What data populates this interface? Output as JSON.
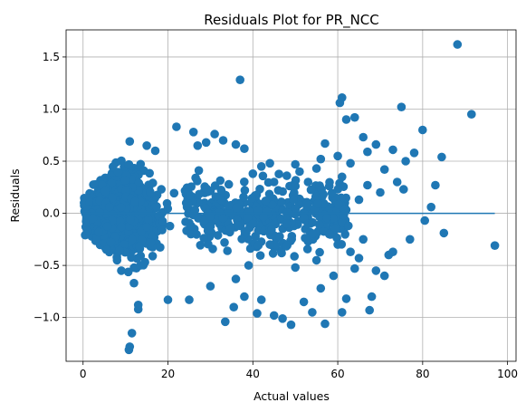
{
  "chart_data": {
    "type": "scatter",
    "title": "Residuals Plot for PR_NCC",
    "xlabel": "Actual values",
    "ylabel": "Residuals",
    "xlim": [
      -4,
      102
    ],
    "ylim": [
      -1.42,
      1.76
    ],
    "xticks": [
      0,
      20,
      40,
      60,
      80,
      100
    ],
    "yticks": [
      -1.0,
      -0.5,
      0.0,
      0.5,
      1.0,
      1.5
    ],
    "ytick_labels": [
      "−1.0",
      "−0.5",
      "0.0",
      "0.5",
      "1.0",
      "1.5"
    ],
    "grid": true,
    "legend": "none",
    "colors": {
      "point": "#1f77b4",
      "line": "#1f77b4"
    },
    "zero_line": {
      "x": [
        0,
        97
      ],
      "y": [
        0,
        0
      ]
    },
    "series": [
      {
        "points": [
          [
            88.2,
            1.62
          ],
          [
            37.0,
            1.28
          ],
          [
            61.0,
            1.11
          ],
          [
            60.5,
            1.06
          ],
          [
            75.0,
            1.02
          ],
          [
            62.0,
            0.9
          ],
          [
            64.0,
            0.92
          ],
          [
            91.5,
            0.95
          ],
          [
            80.0,
            0.8
          ],
          [
            66.0,
            0.73
          ],
          [
            69.0,
            0.66
          ],
          [
            73.0,
            0.61
          ],
          [
            78.0,
            0.58
          ],
          [
            57.0,
            0.67
          ],
          [
            76.0,
            0.5
          ],
          [
            84.5,
            0.54
          ],
          [
            50.0,
            0.47
          ],
          [
            55.0,
            0.43
          ],
          [
            44.0,
            0.48
          ],
          [
            48.0,
            0.36
          ],
          [
            67.0,
            0.27
          ],
          [
            70.0,
            0.2
          ],
          [
            74.0,
            0.3
          ],
          [
            83.0,
            0.27
          ],
          [
            75.5,
            0.23
          ],
          [
            61.0,
            0.35
          ],
          [
            63.0,
            0.48
          ],
          [
            53.0,
            0.3
          ],
          [
            58.0,
            0.26
          ],
          [
            46.0,
            0.22
          ],
          [
            71.0,
            0.42
          ],
          [
            80.5,
            -0.07
          ],
          [
            82.0,
            0.06
          ],
          [
            85.0,
            -0.19
          ],
          [
            97.0,
            -0.31
          ],
          [
            77.0,
            -0.25
          ],
          [
            72.0,
            -0.4
          ],
          [
            69.0,
            -0.55
          ],
          [
            68.0,
            -0.8
          ],
          [
            67.5,
            -0.93
          ],
          [
            73.0,
            -0.37
          ],
          [
            71.0,
            -0.6
          ],
          [
            63.0,
            -0.37
          ],
          [
            64.0,
            -0.53
          ],
          [
            62.0,
            -0.82
          ],
          [
            61.0,
            -0.95
          ],
          [
            57.0,
            -1.06
          ],
          [
            54.0,
            -0.95
          ],
          [
            49.0,
            -1.07
          ],
          [
            45.0,
            -0.98
          ],
          [
            42.0,
            -0.83
          ],
          [
            38.0,
            -0.8
          ],
          [
            35.5,
            -0.9
          ],
          [
            33.5,
            -1.04
          ],
          [
            41.0,
            -0.96
          ],
          [
            47.0,
            -1.01
          ],
          [
            52.0,
            -0.85
          ],
          [
            56.0,
            -0.72
          ],
          [
            59.0,
            -0.6
          ],
          [
            65.0,
            -0.43
          ],
          [
            66.0,
            -0.25
          ],
          [
            60.0,
            -0.3
          ],
          [
            55.0,
            -0.45
          ],
          [
            50.0,
            -0.52
          ],
          [
            44.0,
            -0.3
          ],
          [
            39.0,
            -0.5
          ],
          [
            36.0,
            -0.63
          ],
          [
            34.0,
            -0.36
          ],
          [
            30.0,
            -0.7
          ],
          [
            25.0,
            -0.83
          ],
          [
            20.0,
            -0.83
          ],
          [
            13.0,
            -0.92
          ],
          [
            13.0,
            -0.88
          ],
          [
            11.5,
            -1.15
          ],
          [
            11.0,
            -1.28
          ],
          [
            10.8,
            -1.31
          ],
          [
            12.0,
            -0.67
          ],
          [
            13.5,
            -0.5
          ],
          [
            9.0,
            -0.55
          ],
          [
            8.0,
            -0.45
          ],
          [
            27.0,
            0.65
          ],
          [
            29.0,
            0.68
          ],
          [
            31.0,
            0.76
          ],
          [
            33.0,
            0.7
          ],
          [
            36.0,
            0.66
          ],
          [
            38.0,
            0.62
          ],
          [
            26.0,
            0.78
          ],
          [
            22.0,
            0.83
          ],
          [
            17.0,
            0.6
          ],
          [
            15.0,
            0.65
          ],
          [
            11.0,
            0.69
          ],
          [
            40.0,
            0.38
          ],
          [
            42.0,
            0.45
          ],
          [
            45.0,
            0.3
          ],
          [
            51.0,
            0.4
          ],
          [
            65.0,
            0.13
          ],
          [
            53.0,
            -0.27
          ],
          [
            62.5,
            -0.12
          ],
          [
            58.0,
            -0.2
          ],
          [
            48.0,
            -0.1
          ],
          [
            67.0,
            0.59
          ],
          [
            56.0,
            0.52
          ],
          [
            60.0,
            0.55
          ],
          [
            43.0,
            0.12
          ],
          [
            40.0,
            -0.1
          ]
        ]
      }
    ]
  }
}
